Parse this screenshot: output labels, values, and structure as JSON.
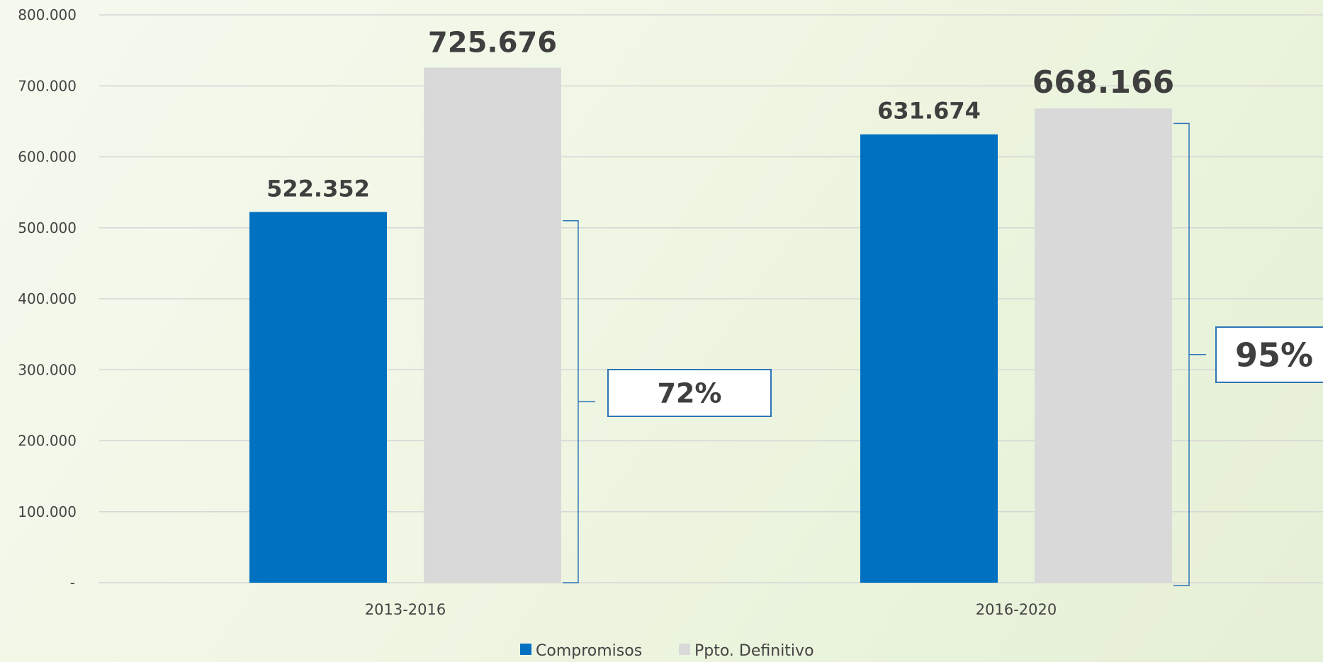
{
  "chart_data": {
    "type": "bar",
    "categories": [
      "2013-2016",
      "2016-2020"
    ],
    "series": [
      {
        "name": "Compromisos",
        "values": [
          522352,
          631674
        ],
        "value_labels": [
          "522.352",
          "631.674"
        ],
        "color": "#0070c0"
      },
      {
        "name": "Ppto. Definitivo",
        "values": [
          725676,
          668166
        ],
        "value_labels": [
          "725.676",
          "668.166"
        ],
        "color": "#d9d9d9"
      }
    ],
    "ylim": [
      0,
      800000
    ],
    "yticks": [
      {
        "value": 0,
        "label": "-"
      },
      {
        "value": 100000,
        "label": "100.000"
      },
      {
        "value": 200000,
        "label": "200.000"
      },
      {
        "value": 300000,
        "label": "300.000"
      },
      {
        "value": 400000,
        "label": "400.000"
      },
      {
        "value": 500000,
        "label": "500.000"
      },
      {
        "value": 600000,
        "label": "600.000"
      },
      {
        "value": 700000,
        "label": "700.000"
      },
      {
        "value": 800000,
        "label": "800.000"
      }
    ],
    "annotations": [
      {
        "category": "2013-2016",
        "label": "72%",
        "bracket_top_value": 510000
      },
      {
        "category": "2016-2020",
        "label": "95%",
        "bracket_top_value": 647000
      }
    ],
    "grid": true,
    "legend_position": "bottom",
    "title": "",
    "xlabel": "",
    "ylabel": "",
    "gridline_color": "#d6d6d6",
    "annotation_color": "#2e75b6"
  }
}
